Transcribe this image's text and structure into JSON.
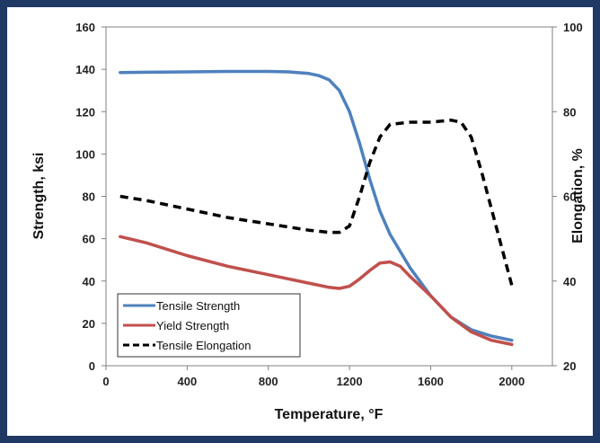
{
  "chart_data": {
    "type": "line",
    "xlabel": "Temperature, °F",
    "ylabel": "Strength, ksi",
    "y2label": "Elongation, %",
    "xlim": [
      0,
      2200
    ],
    "ylim": [
      0,
      160
    ],
    "y2lim": [
      20,
      100
    ],
    "xticks": [
      "0",
      "400",
      "800",
      "1200",
      "1600",
      "2000"
    ],
    "xtick_values": [
      0,
      400,
      800,
      1200,
      1600,
      2000
    ],
    "yticks": [
      "0",
      "20",
      "40",
      "60",
      "80",
      "100",
      "120",
      "140",
      "160"
    ],
    "ytick_values": [
      0,
      20,
      40,
      60,
      80,
      100,
      120,
      140,
      160
    ],
    "y2ticks": [
      "20",
      "40",
      "60",
      "80",
      "100"
    ],
    "y2tick_values": [
      20,
      40,
      60,
      80,
      100
    ],
    "grid": false,
    "legend_position": "bottom-left",
    "series": [
      {
        "name": "Tensile Strength",
        "axis": "left",
        "color": "#4f81bd",
        "style": "solid",
        "x": [
          70,
          200,
          400,
          600,
          800,
          900,
          1000,
          1050,
          1100,
          1150,
          1200,
          1250,
          1300,
          1350,
          1400,
          1500,
          1600,
          1700,
          1800,
          1900,
          2000
        ],
        "y": [
          138.5,
          138.6,
          138.8,
          139,
          139,
          138.8,
          138,
          137,
          135,
          130,
          120,
          105,
          88,
          73,
          62,
          46,
          33,
          23,
          17,
          14,
          12
        ]
      },
      {
        "name": "Yield Strength",
        "axis": "left",
        "color": "#c0504d",
        "style": "solid",
        "x": [
          70,
          200,
          400,
          600,
          800,
          1000,
          1100,
          1150,
          1200,
          1250,
          1300,
          1350,
          1400,
          1450,
          1500,
          1600,
          1700,
          1800,
          1900,
          2000
        ],
        "y": [
          61,
          58,
          52,
          47,
          43,
          39,
          37,
          36.5,
          37.5,
          41,
          45,
          48.5,
          49,
          47,
          42,
          33,
          23,
          16,
          12,
          10
        ]
      },
      {
        "name": "Tensile Elongation",
        "axis": "right",
        "color": "#000000",
        "style": "dashed",
        "x": [
          70,
          200,
          400,
          600,
          800,
          1000,
          1100,
          1150,
          1200,
          1250,
          1300,
          1350,
          1400,
          1500,
          1600,
          1700,
          1750,
          1800,
          1850,
          1900,
          1950,
          2000
        ],
        "y": [
          60,
          59,
          57,
          55,
          53.5,
          52,
          51.5,
          51.5,
          53,
          60,
          68,
          74,
          77,
          77.5,
          77.5,
          78,
          77.5,
          74,
          66,
          57,
          48,
          39
        ]
      }
    ]
  }
}
